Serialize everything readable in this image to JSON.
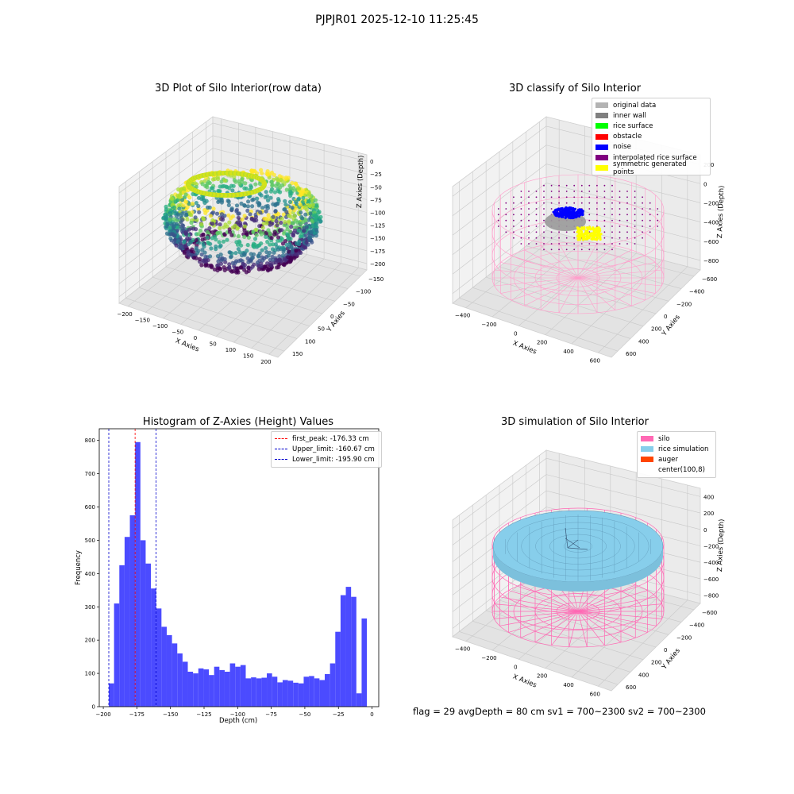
{
  "suptitle": "PJPJR01 2025-12-10 11:25:45",
  "footer": "flag = 29  avgDepth = 80 cm    sv1 = 700~2300  sv2 = 700~2300",
  "colors": {
    "hist_bar": "#4b4bff",
    "peak_line": "#ff0000",
    "limit_line": "#0000cc",
    "silo_wire": "#ff69b4",
    "rice_surface": "#87ceeb",
    "noise": "#0000ff",
    "symmetric": "#ffff00",
    "inner_wall": "#808080"
  },
  "panels": {
    "raw": {
      "title": "3D Plot of Silo Interior(row data)",
      "xlabel": "X Axies",
      "ylabel": "Y Axies",
      "zlabel": "Z Axies (Depth)",
      "xticks": [
        "−200",
        "−150",
        "−100",
        "−50",
        "0",
        "50",
        "100",
        "150",
        "200"
      ],
      "yticks": [
        "150",
        "100",
        "50",
        "0",
        "−50",
        "−100",
        "−150"
      ],
      "zticks": [
        "0",
        "−25",
        "−50",
        "−75",
        "−100",
        "−125",
        "−150",
        "−175",
        "−200"
      ]
    },
    "classify": {
      "title": "3D classify of Silo Interior",
      "xlabel": "X Axies",
      "ylabel": "Y Axies",
      "zlabel": "Z Axies (Depth)",
      "xticks": [
        "−400",
        "−200",
        "0",
        "200",
        "400",
        "600"
      ],
      "yticks": [
        "600",
        "400",
        "200",
        "0",
        "−200",
        "−400",
        "−600"
      ],
      "zticks": [
        "200",
        "0",
        "−200",
        "−400",
        "−600",
        "−800"
      ],
      "ztick_partial": "0",
      "legend": [
        {
          "label": "original data",
          "color": "#b3b3b3"
        },
        {
          "label": "inner wall",
          "color": "#808080"
        },
        {
          "label": "rice surface",
          "color": "#00ff00"
        },
        {
          "label": "obstacle",
          "color": "#ff0000"
        },
        {
          "label": "noise",
          "color": "#0000ff"
        },
        {
          "label": "interpolated rice surface",
          "color": "#800080"
        },
        {
          "label": "symmetric generated points",
          "color": "#ffff00"
        }
      ]
    },
    "simulation": {
      "title": "3D simulation of Silo Interior",
      "xlabel": "X Axies",
      "ylabel": "Y Axies",
      "zlabel": "Z Axies (Depth)",
      "xticks": [
        "−400",
        "−200",
        "0",
        "200",
        "400",
        "600"
      ],
      "yticks": [
        "600",
        "400",
        "200",
        "0",
        "−200",
        "−400",
        "−600"
      ],
      "zticks": [
        "400",
        "200",
        "0",
        "−200",
        "−400",
        "−600",
        "−800"
      ],
      "legend": [
        {
          "label": "silo",
          "color": "#ff69b4"
        },
        {
          "label": "rice simulation",
          "color": "#87ceeb"
        },
        {
          "label": "auger",
          "color": "#ff4500"
        },
        {
          "label": "center(100,8)",
          "color": "#ffffff"
        }
      ]
    }
  },
  "chart_data": {
    "type": "bar",
    "title": "Histogram of Z-Axies (Height) Values",
    "xlabel": "Depth (cm)",
    "ylabel": "Frequency",
    "xlim": [
      -203,
      5
    ],
    "ylim": [
      0,
      835
    ],
    "xticks": [
      -200,
      -175,
      -150,
      -125,
      -100,
      -75,
      -50,
      -25,
      0
    ],
    "xtick_labels": [
      "−200",
      "−175",
      "−150",
      "−125",
      "−100",
      "−75",
      "−50",
      "−25",
      "0"
    ],
    "yticks": [
      0,
      100,
      200,
      300,
      400,
      500,
      600,
      700,
      800
    ],
    "bin_start": -195.9,
    "bin_width": 3.92,
    "values": [
      70,
      310,
      425,
      510,
      575,
      795,
      500,
      430,
      355,
      295,
      240,
      215,
      190,
      160,
      135,
      105,
      100,
      115,
      112,
      95,
      120,
      110,
      105,
      130,
      120,
      125,
      85,
      88,
      85,
      87,
      100,
      90,
      73,
      80,
      78,
      72,
      70,
      90,
      92,
      85,
      80,
      98,
      130,
      225,
      335,
      360,
      330,
      40,
      265
    ],
    "lines": [
      {
        "label": "first_peak: -176.33 cm",
        "x": -176.33,
        "color": "#ff0000"
      },
      {
        "label": "Upper_limit: -160.67 cm",
        "x": -160.67,
        "color": "#0000cc"
      },
      {
        "label": "Lower_limit: -195.90 cm",
        "x": -195.9,
        "color": "#0000cc"
      }
    ],
    "legend_position": "upper right",
    "grid": false
  }
}
